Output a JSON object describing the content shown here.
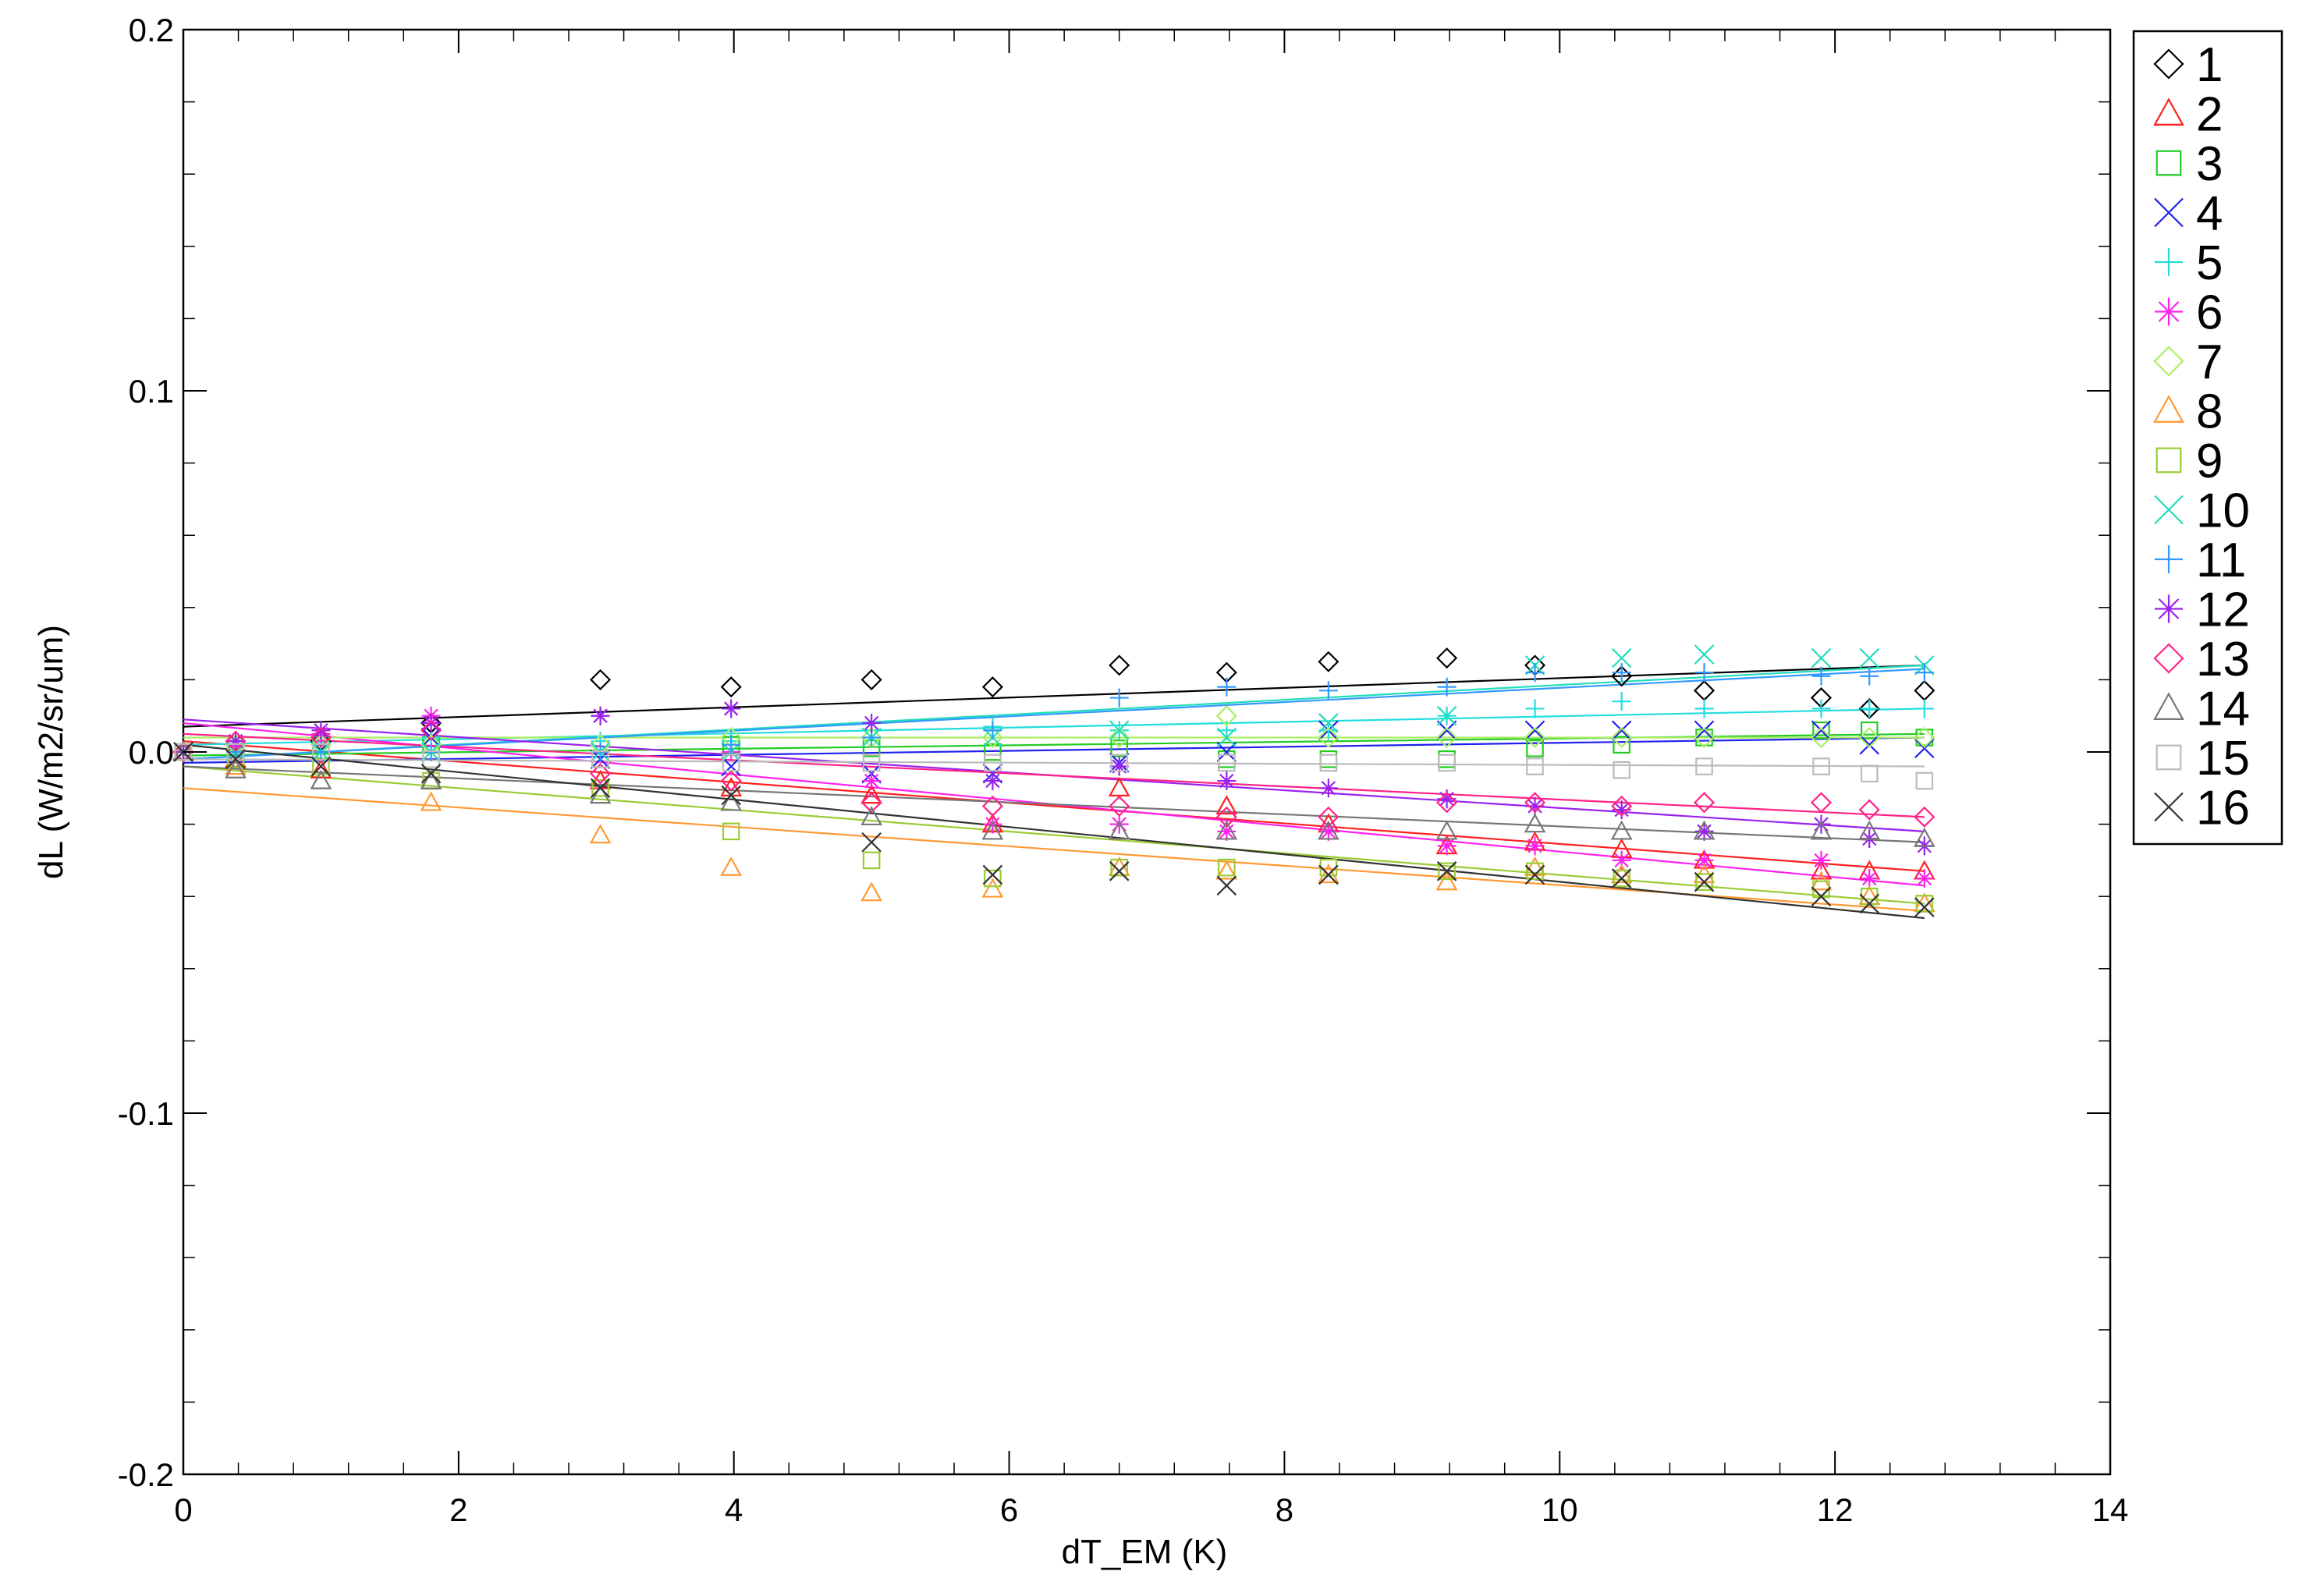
{
  "chart_data": {
    "type": "scatter",
    "xlabel": "dT_EM (K)",
    "ylabel": "dL (W/m2/sr/um)",
    "xlim": [
      0,
      14
    ],
    "ylim": [
      -0.2,
      0.2
    ],
    "xticks": [
      "0",
      "2",
      "4",
      "6",
      "8",
      "10",
      "12",
      "14"
    ],
    "yticks": [
      "0.2",
      "0.1",
      "0.0",
      "-0.1",
      "-0.2"
    ],
    "legend_position": "right",
    "x": [
      0,
      0.38,
      1.0,
      1.8,
      3.03,
      3.98,
      5.0,
      5.88,
      6.8,
      7.58,
      8.32,
      9.18,
      9.82,
      10.45,
      11.05,
      11.9,
      12.25,
      12.65
    ],
    "series": [
      {
        "name": "1",
        "marker": "diamond",
        "color": "#000000",
        "values": [
          0.0,
          0.002,
          0.003,
          0.008,
          0.02,
          0.018,
          0.02,
          0.018,
          0.024,
          0.022,
          0.025,
          0.026,
          0.024,
          0.021,
          0.017,
          0.015,
          0.012,
          0.017
        ],
        "fit": [
          0.007,
          0.024
        ]
      },
      {
        "name": "2",
        "marker": "triangle",
        "color": "#ff2020",
        "values": [
          0.0,
          -0.002,
          -0.005,
          -0.008,
          -0.008,
          -0.01,
          -0.012,
          -0.02,
          -0.01,
          -0.015,
          -0.02,
          -0.026,
          -0.025,
          -0.027,
          -0.03,
          -0.033,
          -0.033,
          -0.033
        ],
        "fit": [
          0.003,
          -0.033
        ]
      },
      {
        "name": "3",
        "marker": "square",
        "color": "#22cc22",
        "values": [
          0.0,
          0.0,
          0.002,
          0.002,
          -0.002,
          0.002,
          0.001,
          0.0,
          0.001,
          -0.002,
          -0.002,
          -0.002,
          0.001,
          0.002,
          0.004,
          0.006,
          0.006,
          0.004
        ],
        "fit": [
          -0.001,
          0.005
        ]
      },
      {
        "name": "4",
        "marker": "x",
        "color": "#2020ee",
        "values": [
          0.0,
          0.0,
          0.0,
          0.004,
          -0.002,
          -0.004,
          -0.006,
          -0.006,
          -0.003,
          0.0,
          0.006,
          0.006,
          0.006,
          0.006,
          0.006,
          0.006,
          0.002,
          0.001
        ],
        "fit": [
          -0.003,
          0.004
        ]
      },
      {
        "name": "5",
        "marker": "plus",
        "color": "#22dddd",
        "values": [
          0.0,
          0.002,
          0.002,
          0.004,
          0.003,
          0.003,
          0.006,
          0.007,
          0.006,
          0.006,
          0.006,
          0.01,
          0.012,
          0.014,
          0.012,
          0.012,
          0.012,
          0.012
        ],
        "fit": [
          0.002,
          0.012
        ]
      },
      {
        "name": "6",
        "marker": "asterisk",
        "color": "#ff22ee",
        "values": [
          0.0,
          0.002,
          0.005,
          0.01,
          0.01,
          0.0,
          -0.008,
          -0.02,
          -0.02,
          -0.022,
          -0.022,
          -0.026,
          -0.026,
          -0.03,
          -0.03,
          -0.03,
          -0.035,
          -0.035
        ],
        "fit": [
          0.008,
          -0.037
        ]
      },
      {
        "name": "7",
        "marker": "diamond",
        "color": "#aaee66",
        "values": [
          0.0,
          0.002,
          0.002,
          0.002,
          0.002,
          0.004,
          0.004,
          0.004,
          0.004,
          0.01,
          0.004,
          0.004,
          0.004,
          0.004,
          0.004,
          0.004,
          0.004,
          0.004
        ],
        "fit": [
          0.004,
          0.004
        ]
      },
      {
        "name": "8",
        "marker": "triangle",
        "color": "#ff9933",
        "values": [
          0.0,
          -0.004,
          -0.008,
          -0.014,
          -0.023,
          -0.032,
          -0.039,
          -0.038,
          -0.032,
          -0.033,
          -0.034,
          -0.036,
          -0.032,
          -0.034,
          -0.034,
          -0.036,
          -0.04,
          -0.042
        ],
        "fit": [
          -0.01,
          -0.044
        ]
      },
      {
        "name": "9",
        "marker": "square",
        "color": "#99cc33",
        "values": [
          0.0,
          -0.002,
          -0.004,
          -0.008,
          -0.01,
          -0.022,
          -0.03,
          -0.035,
          -0.032,
          -0.032,
          -0.032,
          -0.033,
          -0.033,
          -0.035,
          -0.036,
          -0.038,
          -0.04,
          -0.042
        ],
        "fit": [
          -0.004,
          -0.042
        ]
      },
      {
        "name": "10",
        "marker": "x",
        "color": "#22ddbb",
        "values": [
          0.0,
          0.0,
          0.0,
          0.0,
          0.0,
          0.0,
          0.004,
          0.004,
          0.006,
          0.004,
          0.008,
          0.01,
          0.024,
          0.026,
          0.027,
          0.026,
          0.026,
          0.024
        ],
        "fit": [
          -0.002,
          0.024
        ]
      },
      {
        "name": "11",
        "marker": "plus",
        "color": "#3399ff",
        "values": [
          0.0,
          0.0,
          0.0,
          0.0,
          0.0,
          0.002,
          0.004,
          0.006,
          0.015,
          0.018,
          0.017,
          0.018,
          0.022,
          0.022,
          0.022,
          0.021,
          0.021,
          0.022
        ],
        "fit": [
          -0.002,
          0.023
        ]
      },
      {
        "name": "12",
        "marker": "asterisk",
        "color": "#9922ee",
        "values": [
          0.0,
          0.003,
          0.006,
          0.008,
          0.01,
          0.012,
          0.008,
          -0.008,
          -0.004,
          -0.008,
          -0.01,
          -0.013,
          -0.015,
          -0.016,
          -0.022,
          -0.02,
          -0.024,
          -0.026
        ],
        "fit": [
          0.009,
          -0.022
        ]
      },
      {
        "name": "13",
        "marker": "diamond",
        "color": "#ff2288",
        "values": [
          0.0,
          0.003,
          0.004,
          0.006,
          -0.006,
          -0.008,
          -0.014,
          -0.015,
          -0.015,
          -0.018,
          -0.018,
          -0.014,
          -0.014,
          -0.015,
          -0.014,
          -0.014,
          -0.016,
          -0.018
        ],
        "fit": [
          0.005,
          -0.018
        ]
      },
      {
        "name": "14",
        "marker": "triangle",
        "color": "#777777",
        "values": [
          0.0,
          -0.005,
          -0.008,
          -0.008,
          -0.012,
          -0.014,
          -0.018,
          -0.022,
          -0.022,
          -0.022,
          -0.022,
          -0.022,
          -0.02,
          -0.022,
          -0.022,
          -0.022,
          -0.022,
          -0.024
        ],
        "fit": [
          -0.004,
          -0.025
        ]
      },
      {
        "name": "15",
        "marker": "square",
        "color": "#bbbbbb",
        "values": [
          0.0,
          0.0,
          0.0,
          -0.002,
          -0.002,
          -0.003,
          -0.003,
          -0.003,
          -0.003,
          -0.003,
          -0.003,
          -0.003,
          -0.004,
          -0.005,
          -0.004,
          -0.004,
          -0.006,
          -0.008
        ],
        "fit": [
          -0.002,
          -0.004
        ]
      },
      {
        "name": "16",
        "marker": "x",
        "color": "#333333",
        "values": [
          0.0,
          -0.002,
          -0.004,
          -0.006,
          -0.01,
          -0.012,
          -0.025,
          -0.034,
          -0.033,
          -0.037,
          -0.034,
          -0.033,
          -0.034,
          -0.035,
          -0.036,
          -0.04,
          -0.042,
          -0.043
        ],
        "fit": [
          0.002,
          -0.046
        ]
      }
    ]
  }
}
